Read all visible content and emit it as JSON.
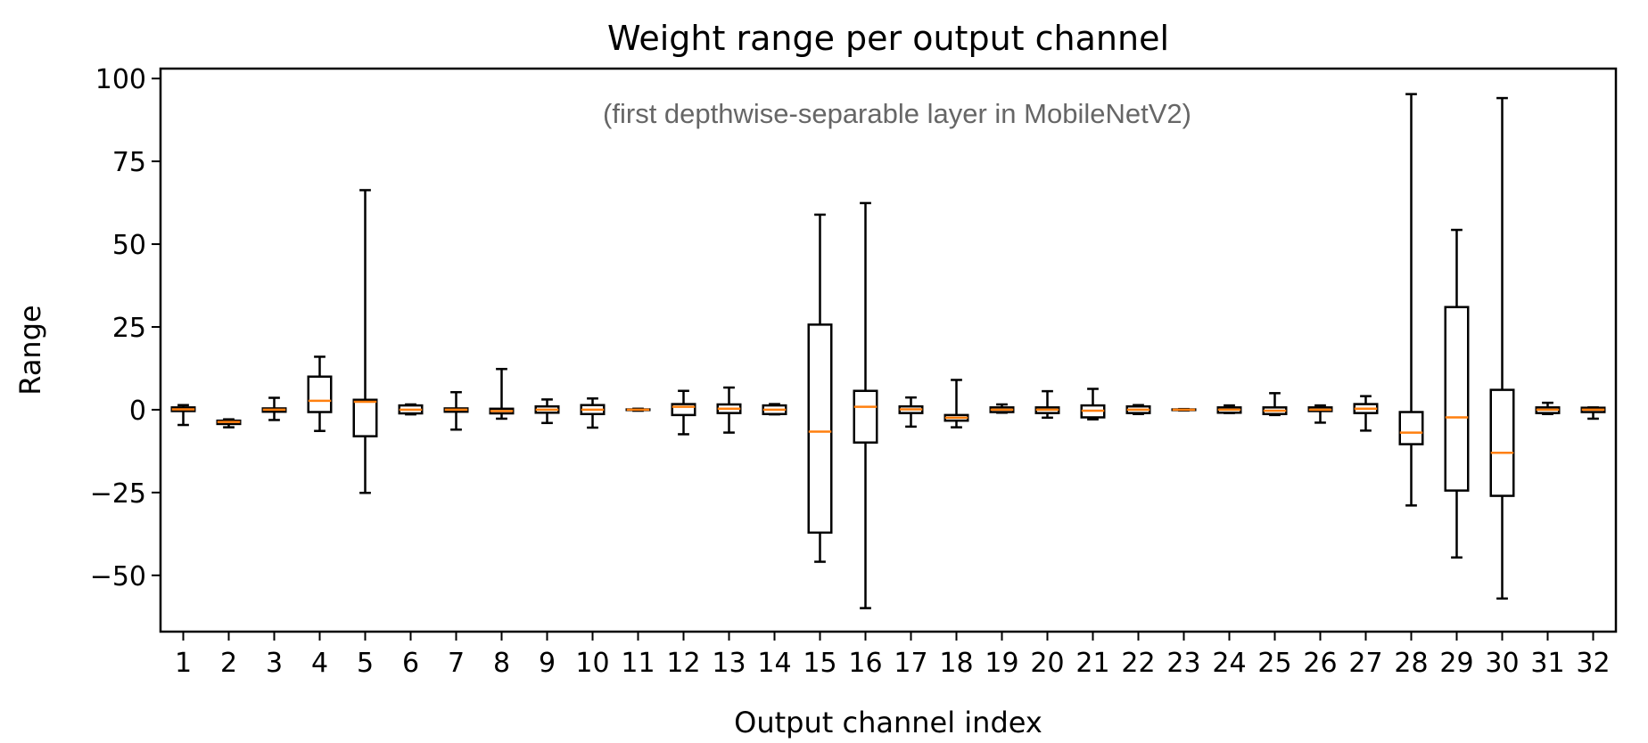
{
  "chart_data": {
    "type": "box",
    "title": "Weight range per output channel",
    "subtitle": "(first depthwise-separable layer in MobileNetV2)",
    "xlabel": "Output channel index",
    "ylabel": "Range",
    "ylim": [
      -67,
      103
    ],
    "xlim": [
      0.5,
      32.5
    ],
    "yticks": [
      -50,
      -25,
      0,
      25,
      50,
      75,
      100
    ],
    "ytick_labels": [
      "−50",
      "−25",
      "0",
      "25",
      "50",
      "75",
      "100"
    ],
    "grid": false,
    "colors": {
      "box": "#000000",
      "median": "#ff7f0e",
      "subtitle": "#666666"
    },
    "categories": [
      "1",
      "2",
      "3",
      "4",
      "5",
      "6",
      "7",
      "8",
      "9",
      "10",
      "11",
      "12",
      "13",
      "14",
      "15",
      "16",
      "17",
      "18",
      "19",
      "20",
      "21",
      "22",
      "23",
      "24",
      "25",
      "26",
      "27",
      "28",
      "29",
      "30",
      "31",
      "32"
    ],
    "boxes": [
      {
        "whislo": -4.6,
        "q1": -0.4,
        "med": 0.1,
        "q3": 0.7,
        "whishi": 1.4
      },
      {
        "whislo": -5.3,
        "q1": -4.3,
        "med": -3.7,
        "q3": -3.3,
        "whishi": -2.9
      },
      {
        "whislo": -3.1,
        "q1": -0.6,
        "med": 0,
        "q3": 0.4,
        "whishi": 3.6
      },
      {
        "whislo": -6.4,
        "q1": -0.7,
        "med": 2.7,
        "q3": 10,
        "whishi": 16
      },
      {
        "whislo": -25.1,
        "q1": -8,
        "med": 2.4,
        "q3": 3,
        "whishi": 66.3
      },
      {
        "whislo": -1.4,
        "q1": -1.1,
        "med": 0,
        "q3": 1.3,
        "whishi": 1.6
      },
      {
        "whislo": -6,
        "q1": -0.6,
        "med": 0,
        "q3": 0.4,
        "whishi": 5.3
      },
      {
        "whislo": -2.7,
        "q1": -1.1,
        "med": -0.4,
        "q3": 0.3,
        "whishi": 12.3
      },
      {
        "whislo": -4,
        "q1": -0.9,
        "med": 0,
        "q3": 1,
        "whishi": 3.1
      },
      {
        "whislo": -5.4,
        "q1": -1.3,
        "med": 0,
        "q3": 1.4,
        "whishi": 3.4
      },
      {
        "whislo": -0.3,
        "q1": -0.1,
        "med": 0,
        "q3": 0.1,
        "whishi": 0.3
      },
      {
        "whislo": -7.4,
        "q1": -1.6,
        "med": 0.9,
        "q3": 1.7,
        "whishi": 5.7
      },
      {
        "whislo": -6.9,
        "q1": -1,
        "med": 0.3,
        "q3": 1.6,
        "whishi": 6.7
      },
      {
        "whislo": -1.4,
        "q1": -1.3,
        "med": 0,
        "q3": 1.3,
        "whishi": 1.7
      },
      {
        "whislo": -45.9,
        "q1": -37.1,
        "med": -6.6,
        "q3": 25.7,
        "whishi": 58.9
      },
      {
        "whislo": -59.9,
        "q1": -9.9,
        "med": 0.9,
        "q3": 5.7,
        "whishi": 62.4
      },
      {
        "whislo": -5.1,
        "q1": -1,
        "med": 0.1,
        "q3": 1,
        "whishi": 3.7
      },
      {
        "whislo": -5.3,
        "q1": -3.3,
        "med": -2.4,
        "q3": -1.6,
        "whishi": 9
      },
      {
        "whislo": -0.9,
        "q1": -0.7,
        "med": 0,
        "q3": 0.7,
        "whishi": 1.6
      },
      {
        "whislo": -2.4,
        "q1": -1,
        "med": 0,
        "q3": 0.7,
        "whishi": 5.6
      },
      {
        "whislo": -2.9,
        "q1": -2.3,
        "med": -0.3,
        "q3": 1.3,
        "whishi": 6.3
      },
      {
        "whislo": -1.3,
        "q1": -1,
        "med": 0,
        "q3": 1,
        "whishi": 1.4
      },
      {
        "whislo": -0.2,
        "q1": -0.1,
        "med": 0,
        "q3": 0.1,
        "whishi": 0.2
      },
      {
        "whislo": -1,
        "q1": -0.9,
        "med": 0,
        "q3": 0.7,
        "whishi": 1.3
      },
      {
        "whislo": -1.6,
        "q1": -1.3,
        "med": -0.3,
        "q3": 0.7,
        "whishi": 5
      },
      {
        "whislo": -3.9,
        "q1": -0.4,
        "med": 0,
        "q3": 0.7,
        "whishi": 1.3
      },
      {
        "whislo": -6.3,
        "q1": -1,
        "med": 0.3,
        "q3": 1.7,
        "whishi": 4.1
      },
      {
        "whislo": -28.9,
        "q1": -10.4,
        "med": -6.9,
        "q3": -0.7,
        "whishi": 95.3
      },
      {
        "whislo": -44.6,
        "q1": -24.4,
        "med": -2.3,
        "q3": 31,
        "whishi": 54.3
      },
      {
        "whislo": -57,
        "q1": -26,
        "med": -13,
        "q3": 6,
        "whishi": 94.1
      },
      {
        "whislo": -1.3,
        "q1": -1,
        "med": 0,
        "q3": 0.7,
        "whishi": 2.1
      },
      {
        "whislo": -2.7,
        "q1": -0.7,
        "med": 0,
        "q3": 0.6,
        "whishi": 0.7
      }
    ]
  }
}
